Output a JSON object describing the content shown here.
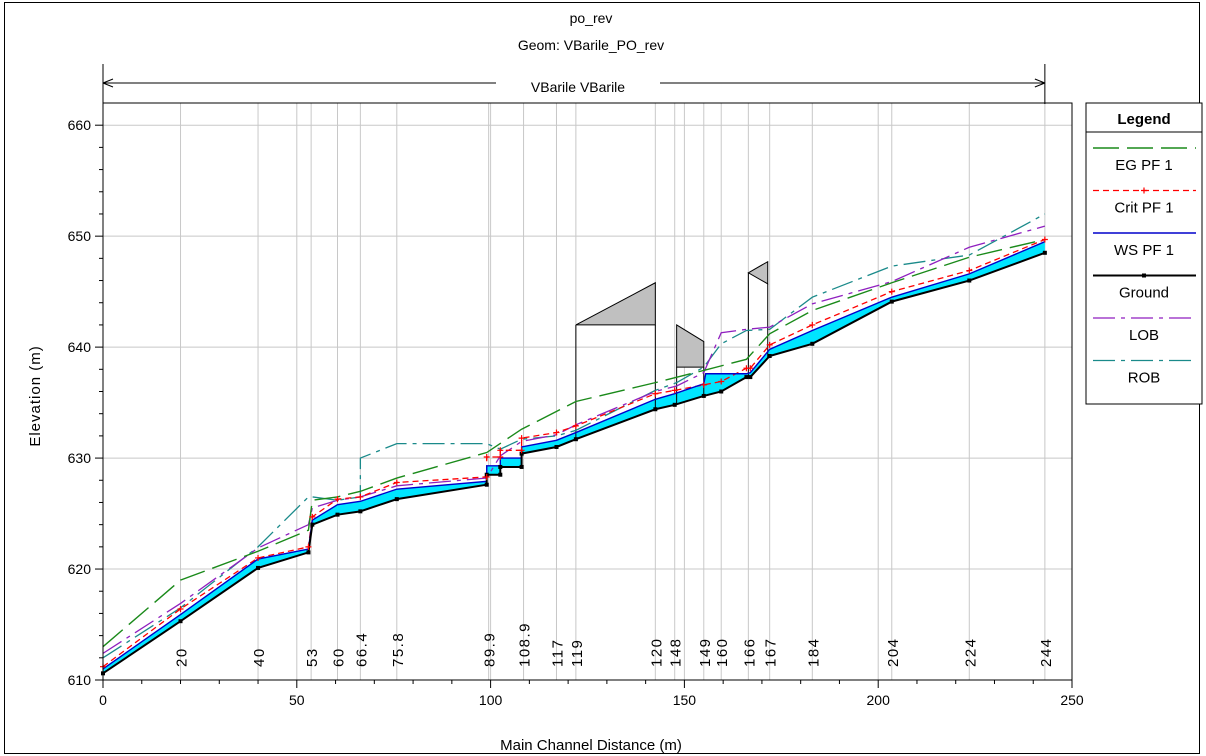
{
  "chart_data": {
    "type": "line",
    "title": "po_rev",
    "subtitle": "Geom: VBarile_PO_rev",
    "reach_label": "VBarile VBarile",
    "xlabel": "Main Channel Distance (m)",
    "ylabel": "Elevation (m)",
    "xlim": [
      0,
      250
    ],
    "ylim": [
      610,
      662
    ],
    "x_ticks": [
      "0",
      "50",
      "100",
      "150",
      "200",
      "250"
    ],
    "y_ticks": [
      "610",
      "620",
      "630",
      "640",
      "650",
      "660"
    ],
    "grid": true,
    "legend_position": "right",
    "legend": {
      "title": "Legend",
      "entries": [
        "EG  PF 1",
        "Crit  PF 1",
        "WS  PF 1",
        "Ground",
        "LOB",
        "ROB"
      ]
    },
    "station_labels": [
      {
        "x": 20,
        "label": "20"
      },
      {
        "x": 40,
        "label": "40"
      },
      {
        "x": 53.7,
        "label": "53"
      },
      {
        "x": 60.5,
        "label": "60"
      },
      {
        "x": 66.4,
        "label": "66.4"
      },
      {
        "x": 75.8,
        "label": "75.8"
      },
      {
        "x": 99.5,
        "label": "89.9"
      },
      {
        "x": 108.5,
        "label": "108.9"
      },
      {
        "x": 117,
        "label": "117"
      },
      {
        "x": 122,
        "label": "119"
      },
      {
        "x": 142.5,
        "label": "120"
      },
      {
        "x": 147.5,
        "label": "148"
      },
      {
        "x": 155,
        "label": "149"
      },
      {
        "x": 159.5,
        "label": "160"
      },
      {
        "x": 166.5,
        "label": "166"
      },
      {
        "x": 172,
        "label": "167"
      },
      {
        "x": 183,
        "label": "184"
      },
      {
        "x": 203.5,
        "label": "204"
      },
      {
        "x": 223.5,
        "label": "224"
      },
      {
        "x": 243,
        "label": "244"
      }
    ],
    "series": [
      {
        "name": "Ground",
        "x": [
          0,
          20,
          40,
          53,
          54,
          60.5,
          66.4,
          75.8,
          99,
          99,
          102.5,
          102.5,
          108,
          108,
          117,
          122,
          142.5,
          147.5,
          155,
          159.5,
          166,
          167,
          172,
          183,
          203.5,
          223.5,
          243
        ],
        "values": [
          610.6,
          615.3,
          620.1,
          621.5,
          624,
          624.9,
          625.2,
          626.3,
          627.6,
          628.5,
          628.5,
          629.2,
          629.2,
          630.4,
          631,
          631.7,
          634.4,
          634.8,
          635.6,
          636,
          637.3,
          637.3,
          639.2,
          640.3,
          644.1,
          646,
          648.5
        ]
      },
      {
        "name": "WS  PF 1",
        "x": [
          0,
          20,
          40,
          53,
          54,
          60.5,
          66.4,
          75.8,
          99,
          99,
          102.5,
          102.5,
          108,
          108,
          117,
          122,
          142.5,
          147.5,
          155,
          155.5,
          166,
          167,
          172,
          183,
          203.5,
          223.5,
          243
        ],
        "values": [
          611,
          615.9,
          620.9,
          621.8,
          624.4,
          625.8,
          626.1,
          627.2,
          627.9,
          629.3,
          629.3,
          630,
          630,
          631,
          631.6,
          632.3,
          635.3,
          635.8,
          636.7,
          637.6,
          637.6,
          637.7,
          639.8,
          641.5,
          644.5,
          646.6,
          649.5
        ]
      },
      {
        "name": "Crit  PF 1",
        "x": [
          0,
          20,
          40,
          53,
          54,
          60.5,
          66.4,
          75.8,
          99,
          99,
          102.5,
          102.5,
          108,
          108,
          117,
          122,
          142.5,
          147.5,
          155,
          159.5,
          166,
          167,
          172,
          183,
          203.5,
          223.5,
          243
        ],
        "values": [
          611.2,
          616.4,
          621,
          622,
          624.7,
          626.3,
          626.5,
          627.8,
          628.3,
          630.1,
          630.1,
          630.7,
          630.7,
          631.8,
          632.3,
          632.9,
          635.8,
          636.1,
          636.6,
          636.9,
          638.1,
          638.1,
          640.2,
          642,
          645,
          646.9,
          649.7
        ]
      },
      {
        "name": "EG  PF 1",
        "x": [
          0,
          20,
          40,
          53,
          54,
          60.5,
          66.4,
          75.8,
          99,
          108,
          122,
          142.5,
          155,
          166,
          172,
          183,
          203.5,
          223.5,
          243
        ],
        "values": [
          613,
          619,
          621.6,
          623.5,
          626.2,
          626.5,
          627,
          628.2,
          630.5,
          632.6,
          635.1,
          636.8,
          637.9,
          638.9,
          641.2,
          643.3,
          645.8,
          648.1,
          649.7
        ]
      },
      {
        "name": "LOB",
        "x": [
          0,
          20,
          40,
          53,
          54,
          60.5,
          66.4,
          75.8,
          99,
          102.5,
          108,
          117,
          122,
          142.5,
          148,
          155,
          159.5,
          166,
          172,
          183,
          203.5,
          223.5,
          243
        ],
        "values": [
          612.4,
          616.9,
          621.9,
          624,
          625.5,
          626.2,
          626.5,
          627.5,
          628.2,
          630.2,
          631.5,
          632.1,
          633,
          636,
          636.5,
          637.7,
          641.3,
          641.6,
          641.8,
          643.9,
          645.9,
          649,
          650.9
        ]
      },
      {
        "name": "ROB",
        "x": [
          0,
          20,
          40,
          53,
          54,
          60.5,
          66.4,
          66.4,
          75.8,
          99,
          102.5,
          108,
          117,
          122,
          142.5,
          148,
          155,
          159.5,
          166,
          172,
          183,
          203.5,
          223.5,
          243
        ],
        "values": [
          612,
          616.5,
          622,
          626.5,
          626.5,
          626.2,
          626.5,
          630,
          631.3,
          631.3,
          630.8,
          631.7,
          632,
          632.5,
          636.1,
          636.8,
          638.2,
          640.3,
          641.5,
          641.6,
          644.5,
          647.3,
          648.3,
          652
        ]
      }
    ],
    "structures": [
      {
        "x1": 122,
        "x2": 142.5,
        "deck_bottom": 642,
        "deck_top_left": 642,
        "deck_top_right": 645.8
      },
      {
        "x1": 148,
        "x2": 155,
        "deck_bottom": 638.2,
        "deck_top_left": 642,
        "deck_top_right": 640.5
      },
      {
        "x1": 166.5,
        "x2": 171.5,
        "deck_bottom": 646.7,
        "deck_top_left": 646.7,
        "deck_top_right": 647.7,
        "deck_bottom_right": 645.7
      }
    ]
  },
  "colors": {
    "water_fill": "#00e5ff",
    "eg": "#1a8a1a",
    "crit": "#ff0000",
    "ws": "#0000cc",
    "ground": "#000000",
    "lob": "#8f1fbf",
    "rob": "#1a8a8a",
    "deck_fill": "#c0c0c0"
  }
}
